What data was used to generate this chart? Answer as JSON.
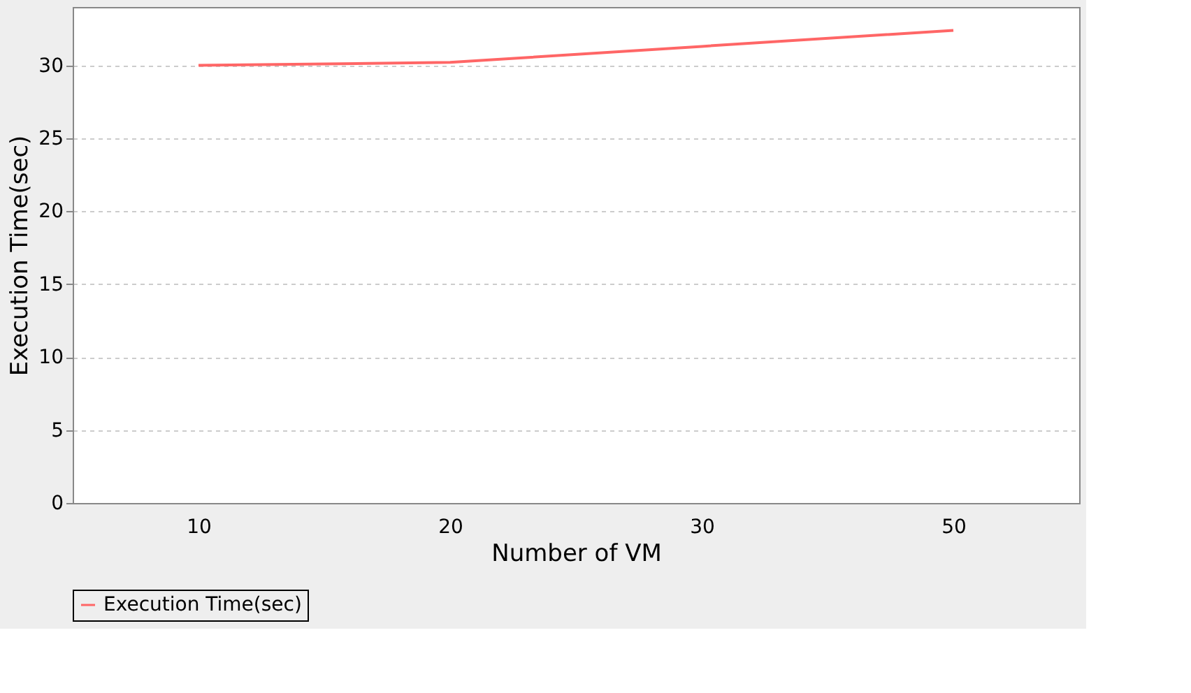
{
  "chart_data": {
    "type": "line",
    "xlabel": "Number of VM",
    "ylabel": "Execution Time(sec)",
    "categories": [
      "10",
      "20",
      "30",
      "50"
    ],
    "series": [
      {
        "name": "Execution Time(sec)",
        "color": "#ff6666",
        "values": [
          30.0,
          30.2,
          31.3,
          32.4
        ]
      }
    ],
    "ylim": [
      0,
      34
    ],
    "yticks": [
      0,
      5,
      10,
      15,
      20,
      25,
      30
    ],
    "grid": "y",
    "legend": "bottom",
    "marker": "none",
    "line_style": "solid"
  }
}
